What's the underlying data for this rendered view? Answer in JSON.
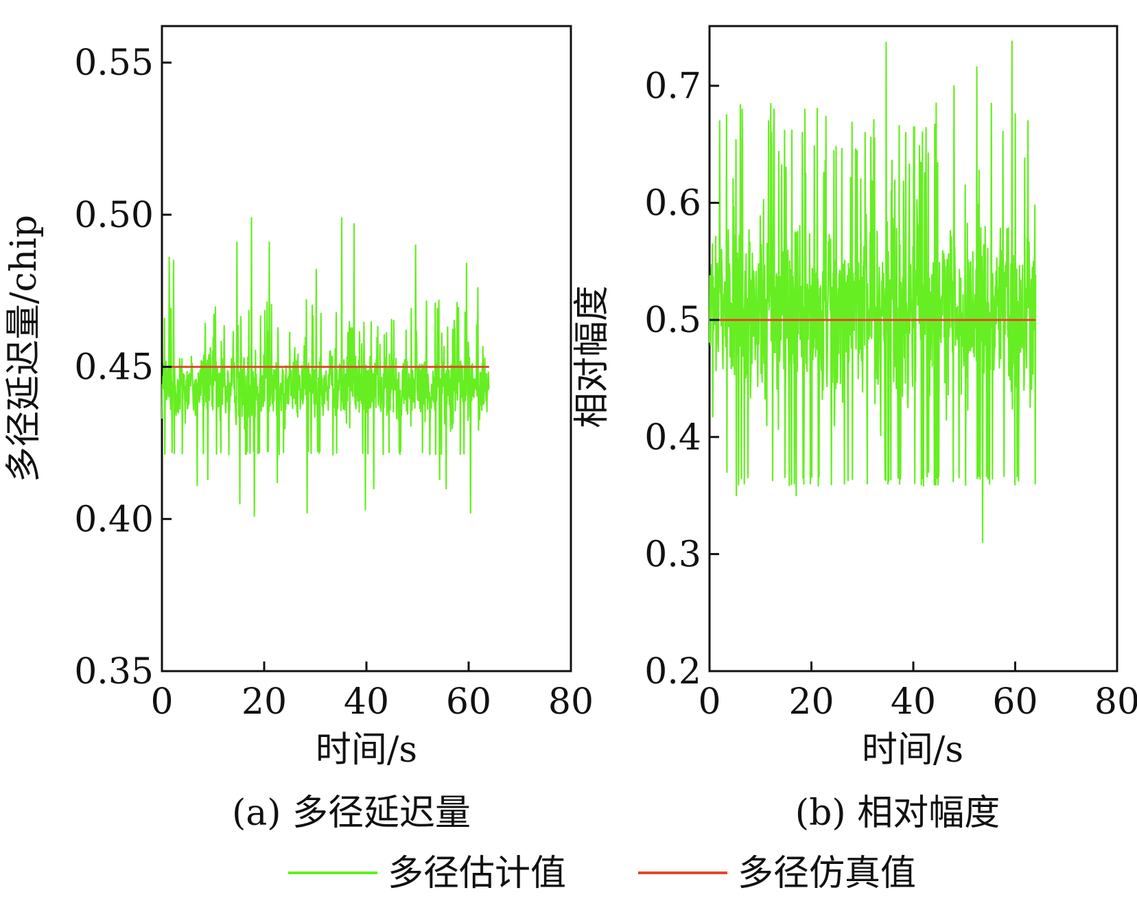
{
  "figure": {
    "legend": {
      "entries": [
        {
          "label": "多径估计值",
          "color": "#66ee22"
        },
        {
          "label": "多径仿真值",
          "color": "#e04a2a"
        }
      ]
    }
  },
  "chart_data": [
    {
      "id": "a",
      "type": "line",
      "caption": "(a) 多径延迟量",
      "xlabel": "时间/s",
      "ylabel": "多径延迟量/chip",
      "xlim": [
        0,
        80
      ],
      "ylim": [
        0.35,
        0.562
      ],
      "xticks": [
        0,
        20,
        40,
        60,
        80
      ],
      "xtick_labels": [
        "0",
        "20",
        "40",
        "60",
        "80"
      ],
      "yticks": [
        0.35,
        0.4,
        0.45,
        0.5,
        0.55
      ],
      "ytick_labels": [
        "0.35",
        "0.40",
        "0.45",
        "0.50",
        "0.55"
      ],
      "series": [
        {
          "name": "多径估计值",
          "color": "#66ee22",
          "x_range": [
            0,
            64
          ],
          "samples": 900,
          "center": 0.445,
          "band": [
            0.426,
            0.462
          ],
          "spikes": [
            {
              "x": 1.4,
              "y": 0.486
            },
            {
              "x": 2.3,
              "y": 0.485
            },
            {
              "x": 6.9,
              "y": 0.411
            },
            {
              "x": 9.0,
              "y": 0.413
            },
            {
              "x": 14.7,
              "y": 0.491
            },
            {
              "x": 15.2,
              "y": 0.405
            },
            {
              "x": 17.5,
              "y": 0.499
            },
            {
              "x": 18.1,
              "y": 0.401
            },
            {
              "x": 21.0,
              "y": 0.491
            },
            {
              "x": 22.6,
              "y": 0.412
            },
            {
              "x": 28.4,
              "y": 0.402
            },
            {
              "x": 30.2,
              "y": 0.482
            },
            {
              "x": 35.2,
              "y": 0.499
            },
            {
              "x": 37.6,
              "y": 0.497
            },
            {
              "x": 39.8,
              "y": 0.403
            },
            {
              "x": 41.4,
              "y": 0.41
            },
            {
              "x": 49.6,
              "y": 0.49
            },
            {
              "x": 54.3,
              "y": 0.413
            },
            {
              "x": 55.6,
              "y": 0.41
            },
            {
              "x": 59.6,
              "y": 0.484
            },
            {
              "x": 60.4,
              "y": 0.402
            },
            {
              "x": 61.8,
              "y": 0.476
            }
          ]
        },
        {
          "name": "多径仿真值",
          "color": "#e04a2a",
          "x": [
            0,
            64
          ],
          "y": [
            0.45,
            0.45
          ]
        }
      ]
    },
    {
      "id": "b",
      "type": "line",
      "caption": "(b) 相对幅度",
      "xlabel": "时间/s",
      "ylabel": "相对幅度",
      "xlim": [
        0,
        80
      ],
      "ylim": [
        0.2,
        0.751
      ],
      "xticks": [
        0,
        20,
        40,
        60,
        80
      ],
      "xtick_labels": [
        "0",
        "20",
        "40",
        "60",
        "80"
      ],
      "yticks": [
        0.2,
        0.3,
        0.4,
        0.5,
        0.6,
        0.7
      ],
      "ytick_labels": [
        "0.2",
        "0.3",
        "0.4",
        "0.5",
        "0.6",
        "0.7"
      ],
      "series": [
        {
          "name": "多径估计值",
          "color": "#66ee22",
          "x_range": [
            0,
            64
          ],
          "samples": 900,
          "center": 0.5,
          "band": [
            0.39,
            0.62
          ],
          "spikes": [
            {
              "x": 2.0,
              "y": 0.67
            },
            {
              "x": 3.4,
              "y": 0.37
            },
            {
              "x": 5.3,
              "y": 0.35
            },
            {
              "x": 6.4,
              "y": 0.68
            },
            {
              "x": 11.6,
              "y": 0.67
            },
            {
              "x": 12.7,
              "y": 0.68
            },
            {
              "x": 17.0,
              "y": 0.35
            },
            {
              "x": 18.2,
              "y": 0.66
            },
            {
              "x": 31.0,
              "y": 0.36
            },
            {
              "x": 34.7,
              "y": 0.737
            },
            {
              "x": 37.5,
              "y": 0.37
            },
            {
              "x": 43.0,
              "y": 0.37
            },
            {
              "x": 48.0,
              "y": 0.7
            },
            {
              "x": 52.5,
              "y": 0.716
            },
            {
              "x": 53.6,
              "y": 0.31
            },
            {
              "x": 59.4,
              "y": 0.738
            },
            {
              "x": 62.5,
              "y": 0.67
            }
          ]
        },
        {
          "name": "多径仿真值",
          "color": "#e04a2a",
          "x": [
            0,
            64
          ],
          "y": [
            0.5,
            0.5
          ]
        }
      ]
    }
  ]
}
